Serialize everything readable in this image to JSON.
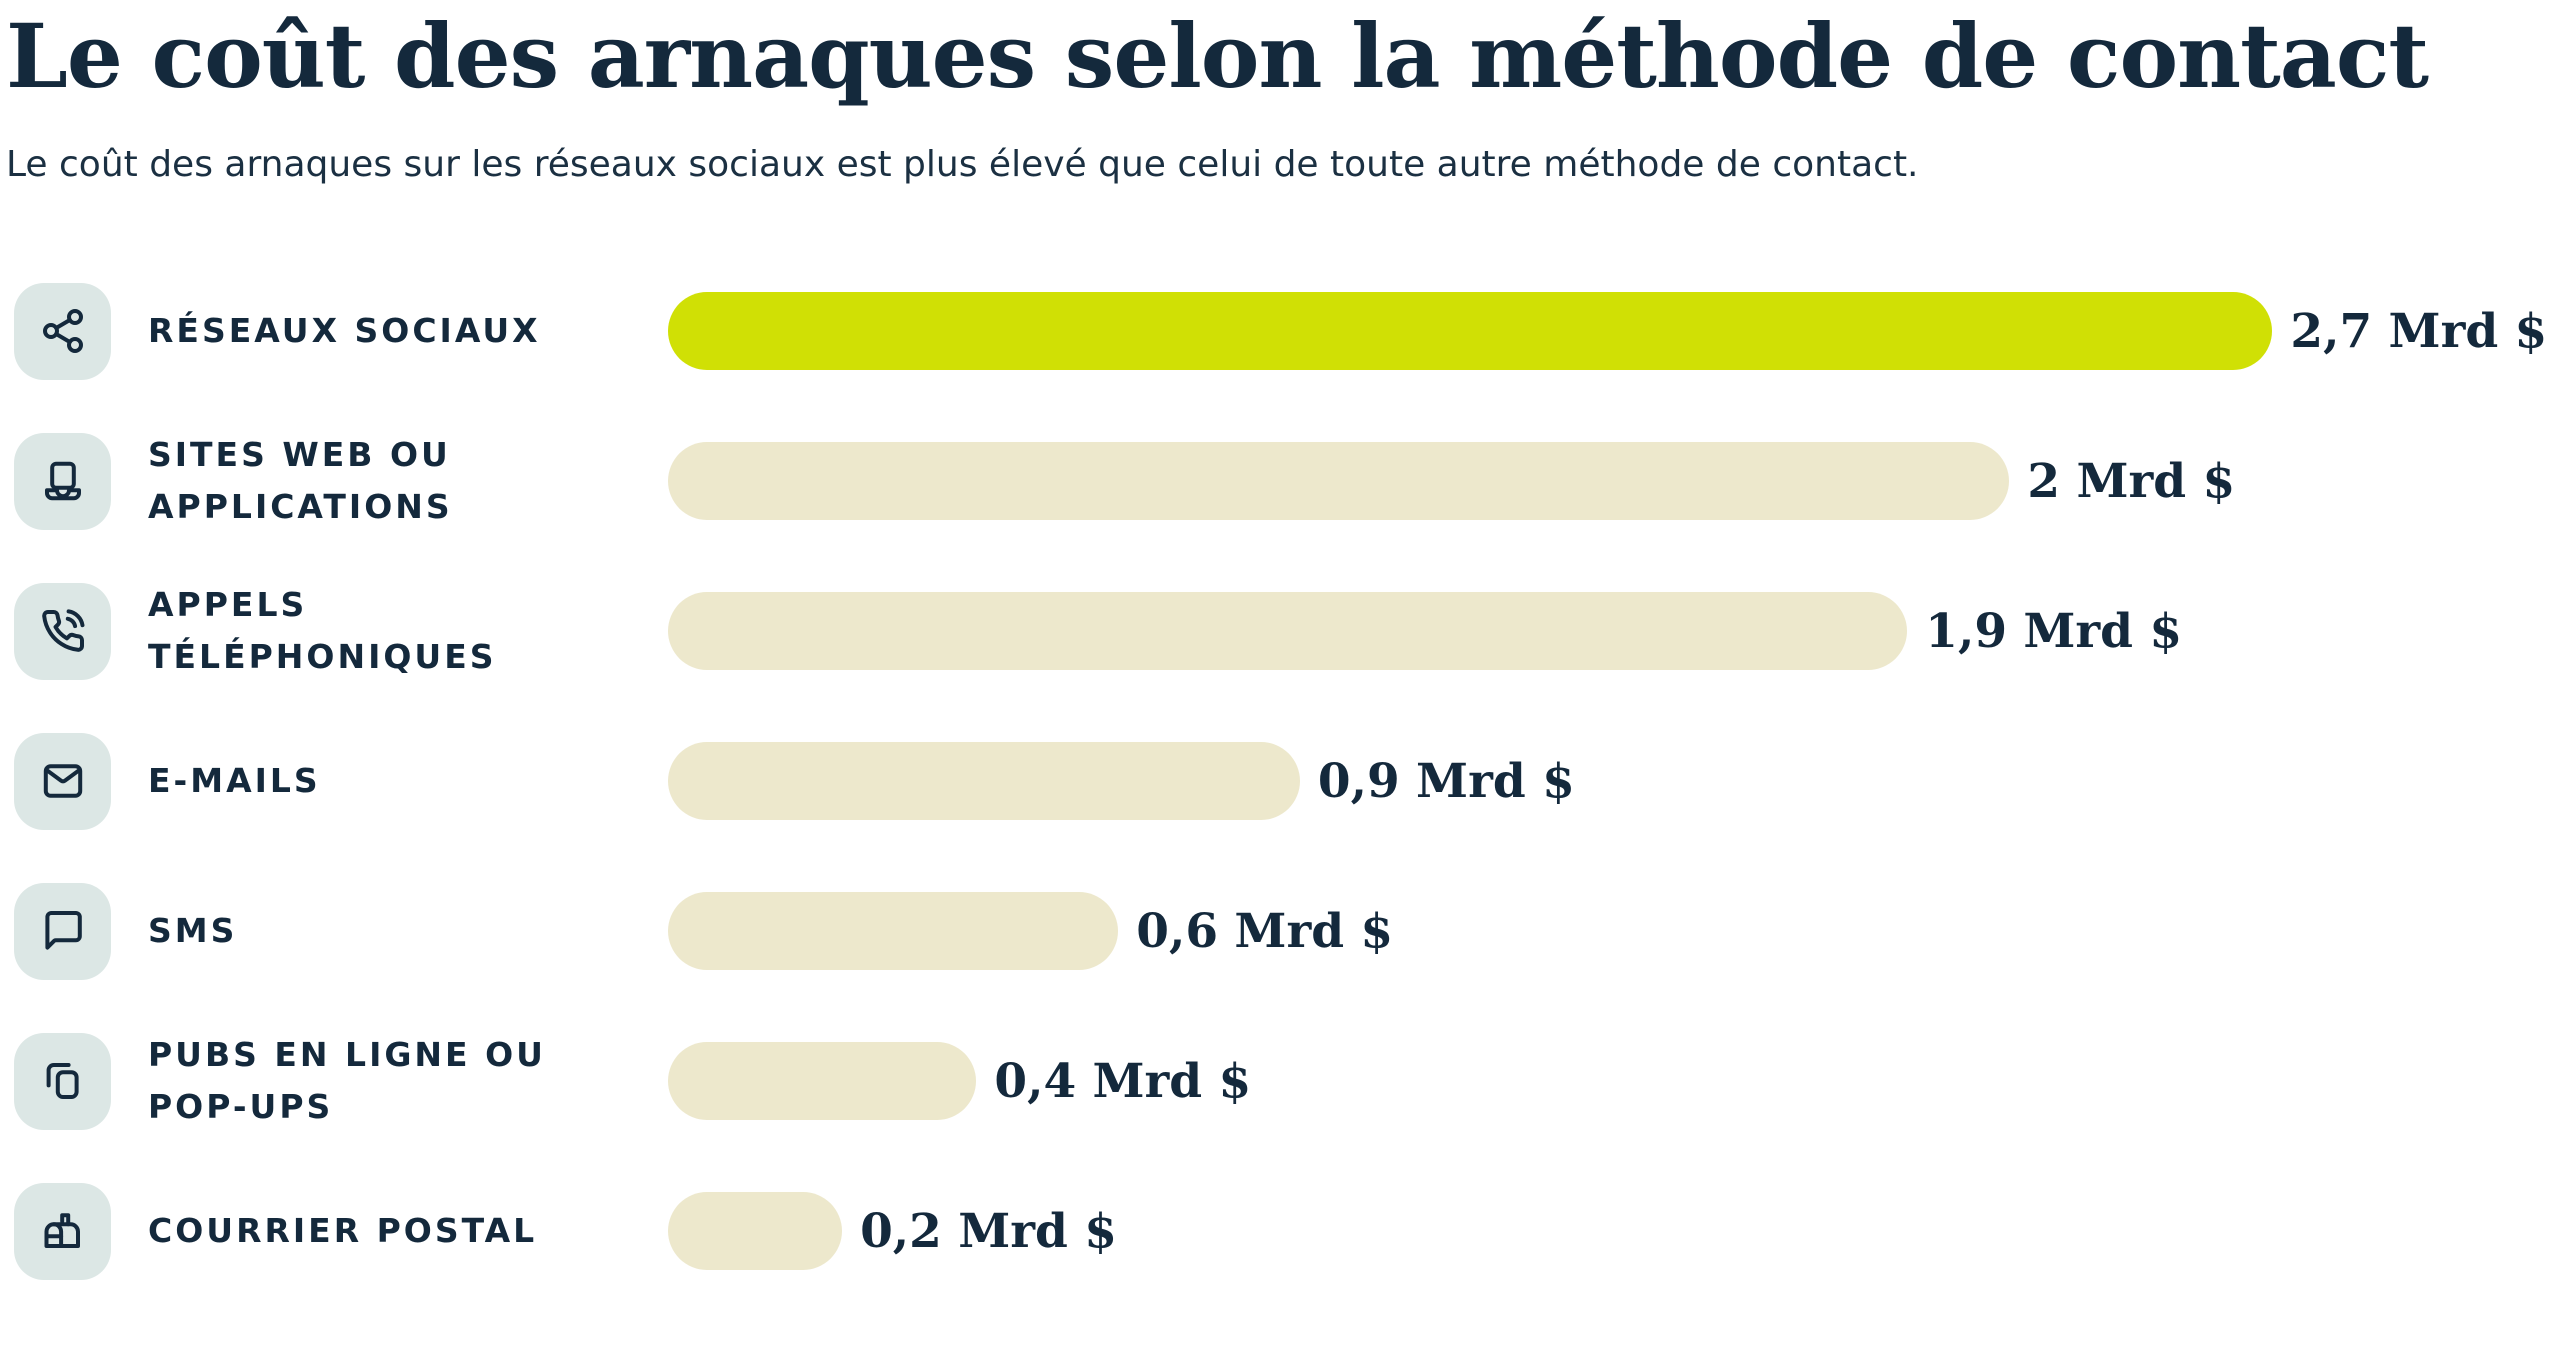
{
  "page": {
    "title": "Le coût des arnaques selon la méthode de contact",
    "subtitle": "Le coût des arnaques sur les réseaux sociaux est plus élevé que celui de toute autre méthode de contact."
  },
  "colors": {
    "text_navy": "#14293c",
    "highlight_bar": "#d0e005",
    "default_bar": "#ede8cc",
    "icon_tile": "#dce7e5"
  },
  "chart_data": {
    "type": "bar",
    "orientation": "horizontal",
    "title": "Le coût des arnaques selon la méthode de contact",
    "subtitle": "Le coût des arnaques sur les réseaux sociaux est plus élevé que celui de toute autre méthode de contact.",
    "unit": "Mrd $",
    "categories": [
      "Réseaux sociaux",
      "Sites web ou applications",
      "Appels téléphoniques",
      "E-mails",
      "SMS",
      "Pubs en ligne ou pop-ups",
      "Courrier postal"
    ],
    "values": [
      2.7,
      2,
      1.9,
      0.9,
      0.6,
      0.4,
      0.2
    ],
    "value_labels": [
      "2,7 Mrd $",
      "2 Mrd $",
      "1,9 Mrd $",
      "0,9 Mrd $",
      "0,6 Mrd $",
      "0,4 Mrd $",
      "0,2 Mrd $"
    ],
    "highlighted_category": "Réseaux sociaux",
    "legend": "none",
    "grid": "off",
    "axis_labels": "none"
  },
  "rows": [
    {
      "icon": "share",
      "label": "RÉSEAUX SOCIAUX",
      "value": 2.7,
      "value_label": "2,7 Mrd $",
      "bar_pct": 84.8,
      "highlight": true
    },
    {
      "icon": "laptop",
      "label": "SITES WEB OU\nAPPLICATIONS",
      "value": 2,
      "value_label": "2 Mrd $",
      "bar_pct": 70.9,
      "highlight": false
    },
    {
      "icon": "phone-call",
      "label": "APPELS\nTÉLÉPHONIQUES",
      "value": 1.9,
      "value_label": "1,9 Mrd $",
      "bar_pct": 65.5,
      "highlight": false
    },
    {
      "icon": "envelope",
      "label": "E-MAILS",
      "value": 0.9,
      "value_label": "0,9 Mrd $",
      "bar_pct": 33.4,
      "highlight": false
    },
    {
      "icon": "speech-bubble",
      "label": "SMS",
      "value": 0.6,
      "value_label": "0,6 Mrd $",
      "bar_pct": 23.8,
      "highlight": false
    },
    {
      "icon": "popup-windows",
      "label": "PUBS EN LIGNE OU\nPOP-UPS",
      "value": 0.4,
      "value_label": "0,4 Mrd $",
      "bar_pct": 16.3,
      "highlight": false
    },
    {
      "icon": "mailbox",
      "label": "COURRIER POSTAL",
      "value": 0.2,
      "value_label": "0,2 Mrd $",
      "bar_pct": 9.2,
      "highlight": false
    }
  ]
}
